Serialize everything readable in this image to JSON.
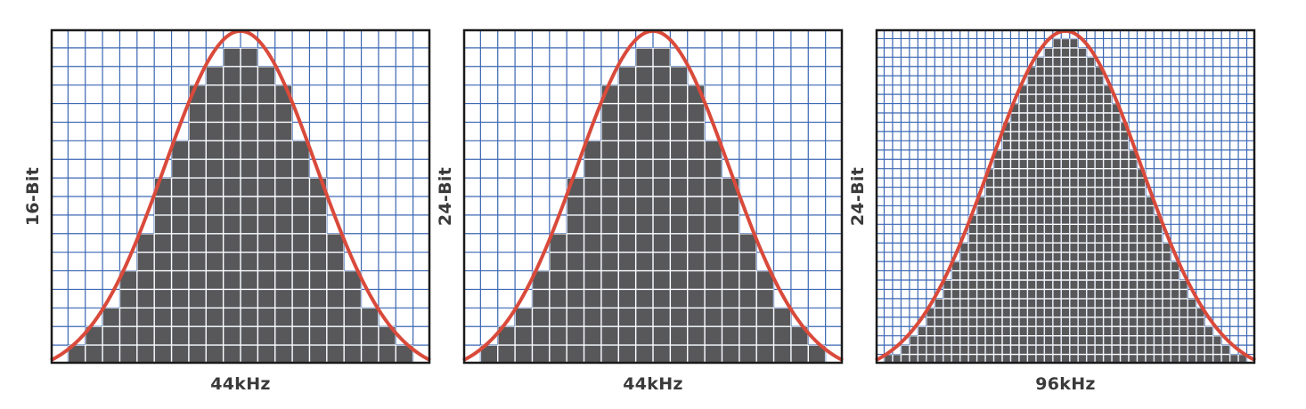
{
  "panels": [
    {
      "bit_label": "16-Bit",
      "rate_label": "44kHz",
      "columns": 22,
      "rows": 18
    },
    {
      "bit_label": "24-Bit",
      "rate_label": "44kHz",
      "columns": 22,
      "rows": 18
    },
    {
      "bit_label": "24-Bit",
      "rate_label": "96kHz",
      "columns": 45,
      "rows": 36
    }
  ],
  "colors": {
    "grid_lines": "#3b67b3",
    "grid_background": "#ffffff",
    "filled_cells": "#58585a",
    "curve": "#d94a3b",
    "frame": "#1a1a1a"
  }
}
